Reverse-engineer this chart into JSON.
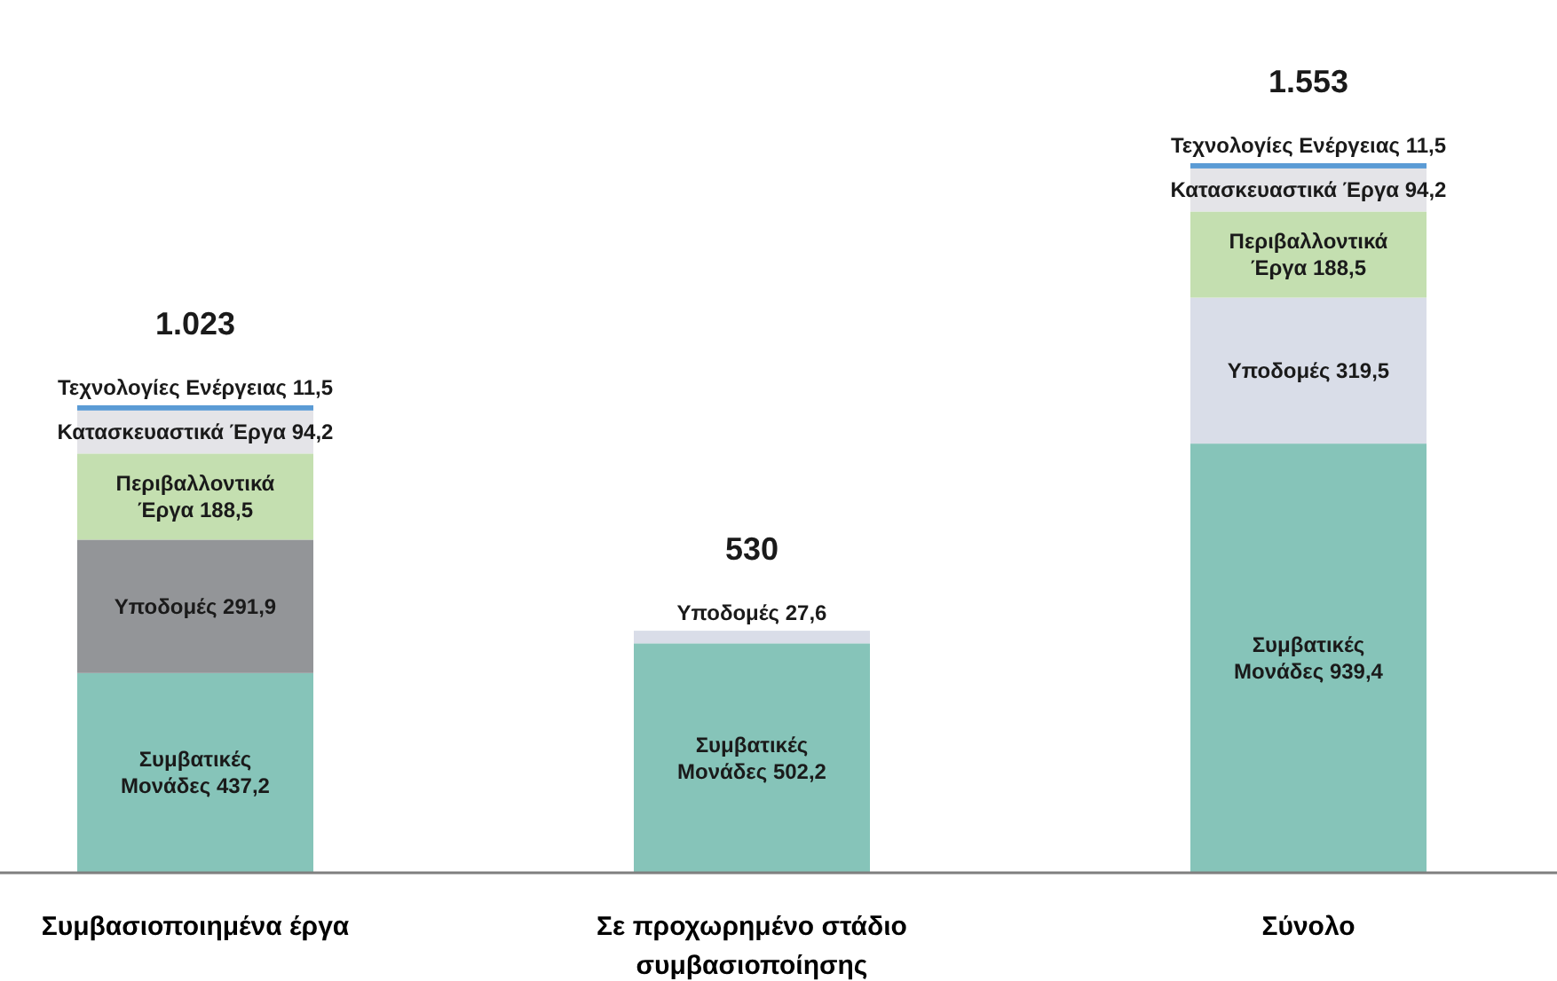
{
  "chart_data": {
    "type": "bar",
    "stacked": true,
    "categories": [
      "Συμβασιοποιημένα έργα",
      "Σε προχωρημένο στάδιο συμβασιοποίησης",
      "Σύνολο"
    ],
    "series": [
      {
        "name": "Συμβατικές Μονάδες",
        "color": "#86c4b9",
        "values": [
          437.2,
          502.2,
          939.4
        ],
        "value_labels": [
          "437,2",
          "502,2",
          "939,4"
        ]
      },
      {
        "name": "Υποδομές",
        "colors": [
          "#939598",
          "#d9dde8",
          "#d9dde8"
        ],
        "values": [
          291.9,
          27.6,
          319.5
        ],
        "value_labels": [
          "291,9",
          "27,6",
          "319,5"
        ]
      },
      {
        "name": "Περιβαλλοντικά Έργα",
        "color": "#c4dfb0",
        "values": [
          188.5,
          null,
          188.5
        ],
        "value_labels": [
          "188,5",
          null,
          "188,5"
        ]
      },
      {
        "name": "Κατασκευαστικά Έργα",
        "color": "#e4e4e8",
        "values": [
          94.2,
          null,
          94.2
        ],
        "value_labels": [
          "94,2",
          null,
          "94,2"
        ]
      },
      {
        "name": "Τεχνολογίες Ενέργειας",
        "color": "#5b9bd5",
        "values": [
          11.5,
          null,
          11.5
        ],
        "value_labels": [
          "11,5",
          null,
          "11,5"
        ]
      }
    ],
    "totals": [
      "1.023",
      "530",
      "1.553"
    ],
    "legend": false
  }
}
